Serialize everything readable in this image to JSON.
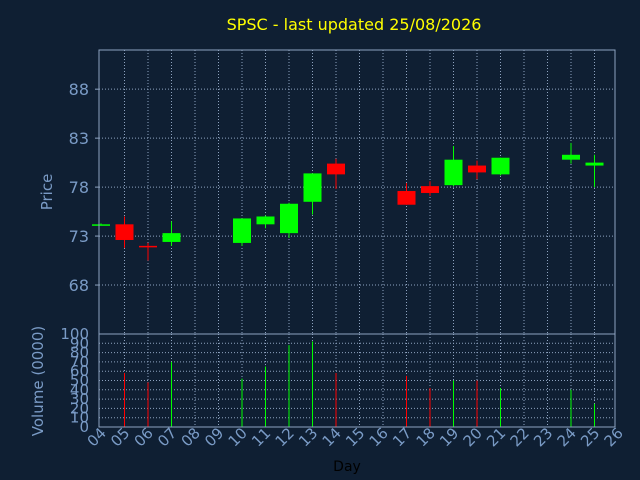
{
  "colors": {
    "background": "#0f1f33",
    "plot_border": "#8ea3c0",
    "grid": "#8ea3c0",
    "title": "#ffff00",
    "axis_text": "#7a9bc6",
    "xlabel_text": "#000000",
    "up": "#00ff00",
    "down": "#ff0000"
  },
  "chart_data": [
    {
      "type": "candlestick",
      "title": "SPSC - last updated 25/08/2026",
      "ylabel": "Price",
      "ylim": [
        63,
        92
      ],
      "yticks": [
        68,
        73,
        78,
        83,
        88
      ],
      "ytick_labels": [
        "68",
        "73",
        "78",
        "83",
        "88"
      ],
      "grid": true,
      "candles": [
        {
          "day": "04",
          "open": 74.2,
          "high": 74.3,
          "low": 74.1,
          "close": 74.2
        },
        {
          "day": "05",
          "open": 74.2,
          "high": 75.0,
          "low": 71.8,
          "close": 72.6
        },
        {
          "day": "06",
          "open": 72.0,
          "high": 72.3,
          "low": 70.5,
          "close": 71.9
        },
        {
          "day": "07",
          "open": 72.4,
          "high": 74.5,
          "low": 72.0,
          "close": 73.3
        },
        {
          "day": "10",
          "open": 72.3,
          "high": 74.8,
          "low": 72.0,
          "close": 74.8
        },
        {
          "day": "11",
          "open": 74.2,
          "high": 75.1,
          "low": 73.8,
          "close": 75.0
        },
        {
          "day": "12",
          "open": 73.3,
          "high": 76.4,
          "low": 72.8,
          "close": 76.3
        },
        {
          "day": "13",
          "open": 76.5,
          "high": 79.4,
          "low": 75.2,
          "close": 79.4
        },
        {
          "day": "14",
          "open": 80.4,
          "high": 80.9,
          "low": 77.8,
          "close": 79.3
        },
        {
          "day": "17",
          "open": 77.6,
          "high": 78.4,
          "low": 76.2,
          "close": 76.2
        },
        {
          "day": "18",
          "open": 78.1,
          "high": 78.6,
          "low": 77.1,
          "close": 77.4
        },
        {
          "day": "19",
          "open": 78.2,
          "high": 82.2,
          "low": 78.1,
          "close": 80.8
        },
        {
          "day": "20",
          "open": 80.2,
          "high": 80.7,
          "low": 78.8,
          "close": 79.5
        },
        {
          "day": "21",
          "open": 79.3,
          "high": 81.0,
          "low": 79.2,
          "close": 81.0
        },
        {
          "day": "24",
          "open": 80.8,
          "high": 82.5,
          "low": 80.4,
          "close": 81.3
        },
        {
          "day": "25",
          "open": 80.2,
          "high": 81.3,
          "low": 78.0,
          "close": 80.5
        }
      ]
    },
    {
      "type": "bar",
      "ylabel": "Volume (0000)",
      "xlabel": "Day",
      "ylim": [
        0,
        100
      ],
      "yticks": [
        0,
        10,
        20,
        30,
        40,
        50,
        60,
        70,
        80,
        90,
        100
      ],
      "ytick_labels": [
        "0",
        "10",
        "20",
        "30",
        "40",
        "50",
        "60",
        "70",
        "80",
        "90",
        "100"
      ],
      "grid": true,
      "categories": [
        "04",
        "05",
        "06",
        "07",
        "08",
        "09",
        "10",
        "11",
        "12",
        "13",
        "14",
        "15",
        "16",
        "17",
        "18",
        "19",
        "20",
        "21",
        "22",
        "23",
        "24",
        "25",
        "26"
      ],
      "volumes": [
        {
          "day": "05",
          "value": 58,
          "color": "down"
        },
        {
          "day": "06",
          "value": 48,
          "color": "down"
        },
        {
          "day": "07",
          "value": 70,
          "color": "up"
        },
        {
          "day": "10",
          "value": 52,
          "color": "up"
        },
        {
          "day": "11",
          "value": 65,
          "color": "up"
        },
        {
          "day": "12",
          "value": 88,
          "color": "up"
        },
        {
          "day": "13",
          "value": 92,
          "color": "up"
        },
        {
          "day": "14",
          "value": 58,
          "color": "down"
        },
        {
          "day": "17",
          "value": 55,
          "color": "down"
        },
        {
          "day": "18",
          "value": 42,
          "color": "down"
        },
        {
          "day": "19",
          "value": 50,
          "color": "up"
        },
        {
          "day": "20",
          "value": 50,
          "color": "down"
        },
        {
          "day": "21",
          "value": 42,
          "color": "up"
        },
        {
          "day": "24",
          "value": 40,
          "color": "up"
        },
        {
          "day": "25",
          "value": 25,
          "color": "up"
        }
      ]
    }
  ]
}
